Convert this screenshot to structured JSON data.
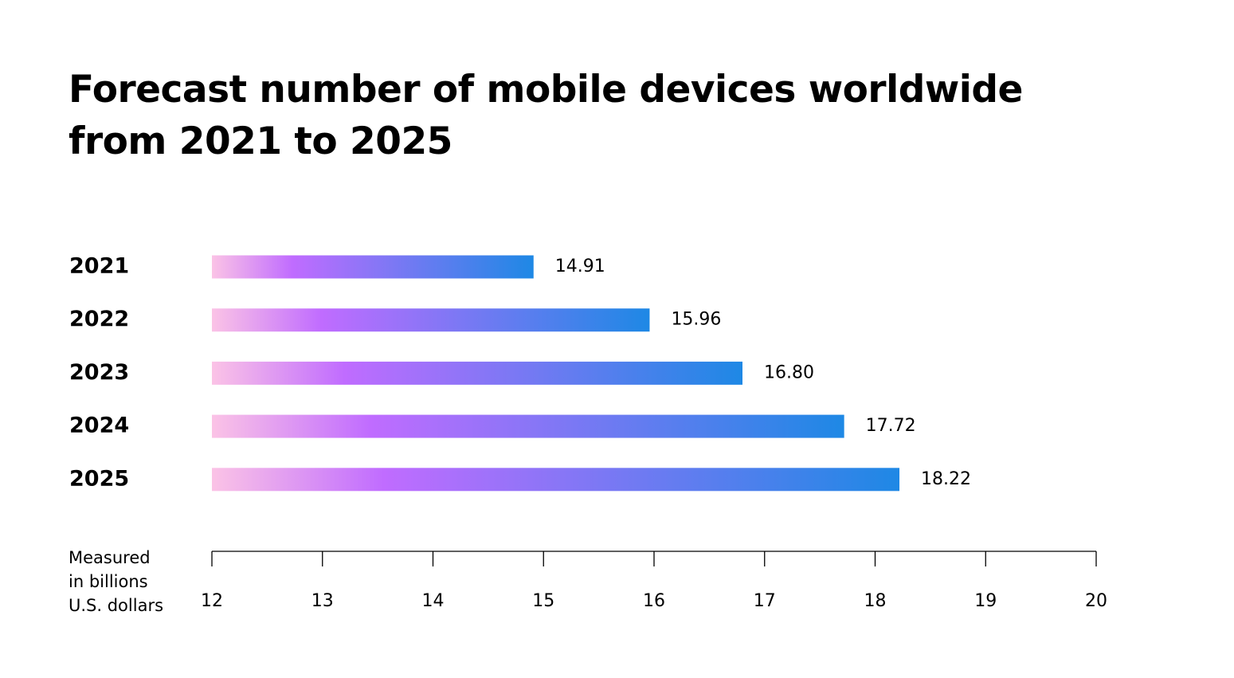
{
  "chart_data": {
    "type": "bar",
    "orientation": "horizontal",
    "title": [
      "Forecast number of mobile devices worldwide",
      "from 2021 to 2025"
    ],
    "unit_label": [
      "Measured",
      "in billions",
      "U.S. dollars"
    ],
    "categories": [
      "2021",
      "2022",
      "2023",
      "2024",
      "2025"
    ],
    "values": [
      14.91,
      15.96,
      16.8,
      17.72,
      18.22
    ],
    "value_labels": [
      "14.91",
      "15.96",
      "16.80",
      "17.72",
      "18.22"
    ],
    "xlim": [
      12,
      20
    ],
    "xticks": [
      "12",
      "13",
      "14",
      "15",
      "16",
      "17",
      "18",
      "19",
      "20"
    ],
    "grid": false,
    "legend": "none",
    "bar_gradient": [
      "#fbc3e6",
      "#c06cff",
      "#1e88e5"
    ]
  }
}
